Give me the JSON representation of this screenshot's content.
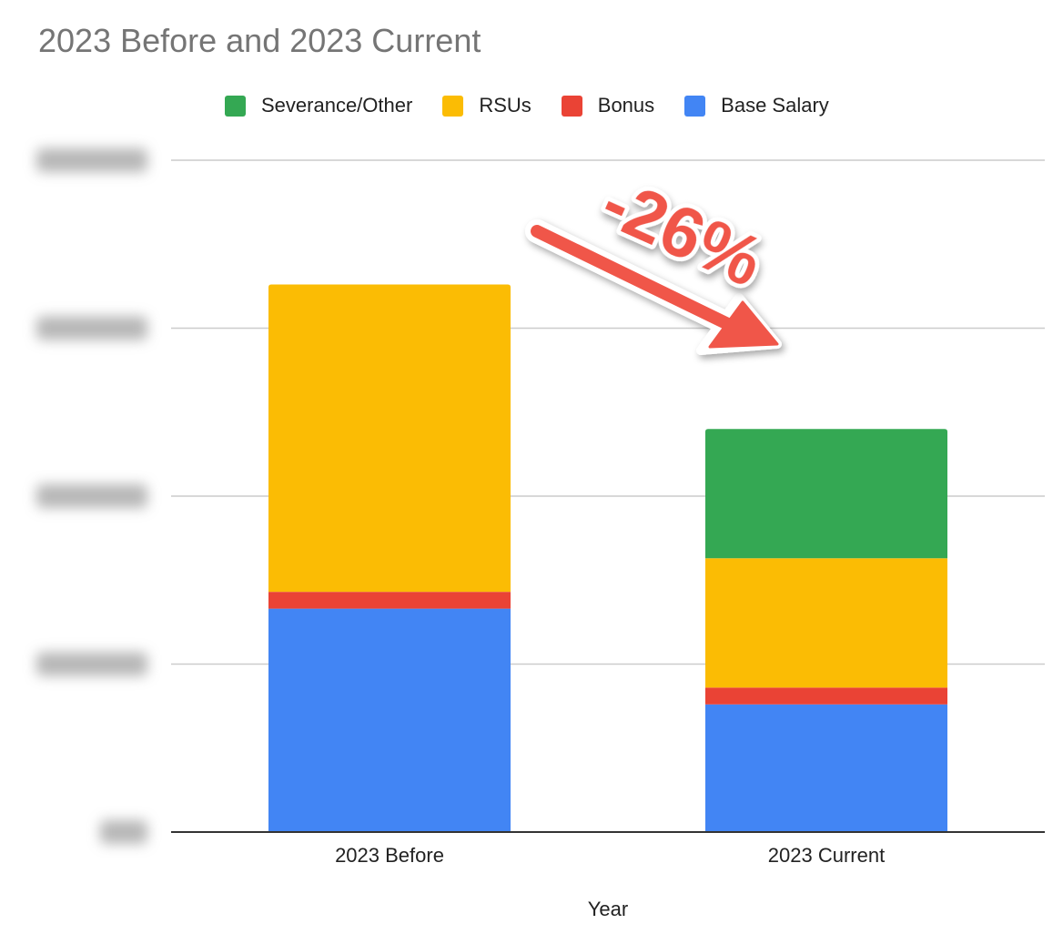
{
  "chart_data": {
    "type": "bar",
    "stacked": true,
    "title": "2023 Before and 2023 Current",
    "xlabel": "Year",
    "ylabel": "",
    "categories": [
      "2023 Before",
      "2023 Current"
    ],
    "ylim": [
      0,
      4
    ],
    "y_ticks": [
      0,
      1,
      2,
      3,
      4
    ],
    "y_tick_labels_obscured": true,
    "grid": true,
    "legend_position": "top",
    "series": [
      {
        "name": "Base Salary",
        "color": "#4285F4",
        "values": [
          1.33,
          0.76
        ]
      },
      {
        "name": "Bonus",
        "color": "#EA4335",
        "values": [
          0.1,
          0.1
        ]
      },
      {
        "name": "RSUs",
        "color": "#FBBC04",
        "values": [
          1.83,
          0.77
        ]
      },
      {
        "name": "Severance/Other",
        "color": "#34A853",
        "values": [
          0,
          0.77
        ]
      }
    ],
    "legend_order": [
      "Severance/Other",
      "RSUs",
      "Bonus",
      "Base Salary"
    ],
    "annotation": {
      "text": "-26%",
      "color": "#F0564A",
      "icon": "arrow-down-right-icon"
    }
  }
}
